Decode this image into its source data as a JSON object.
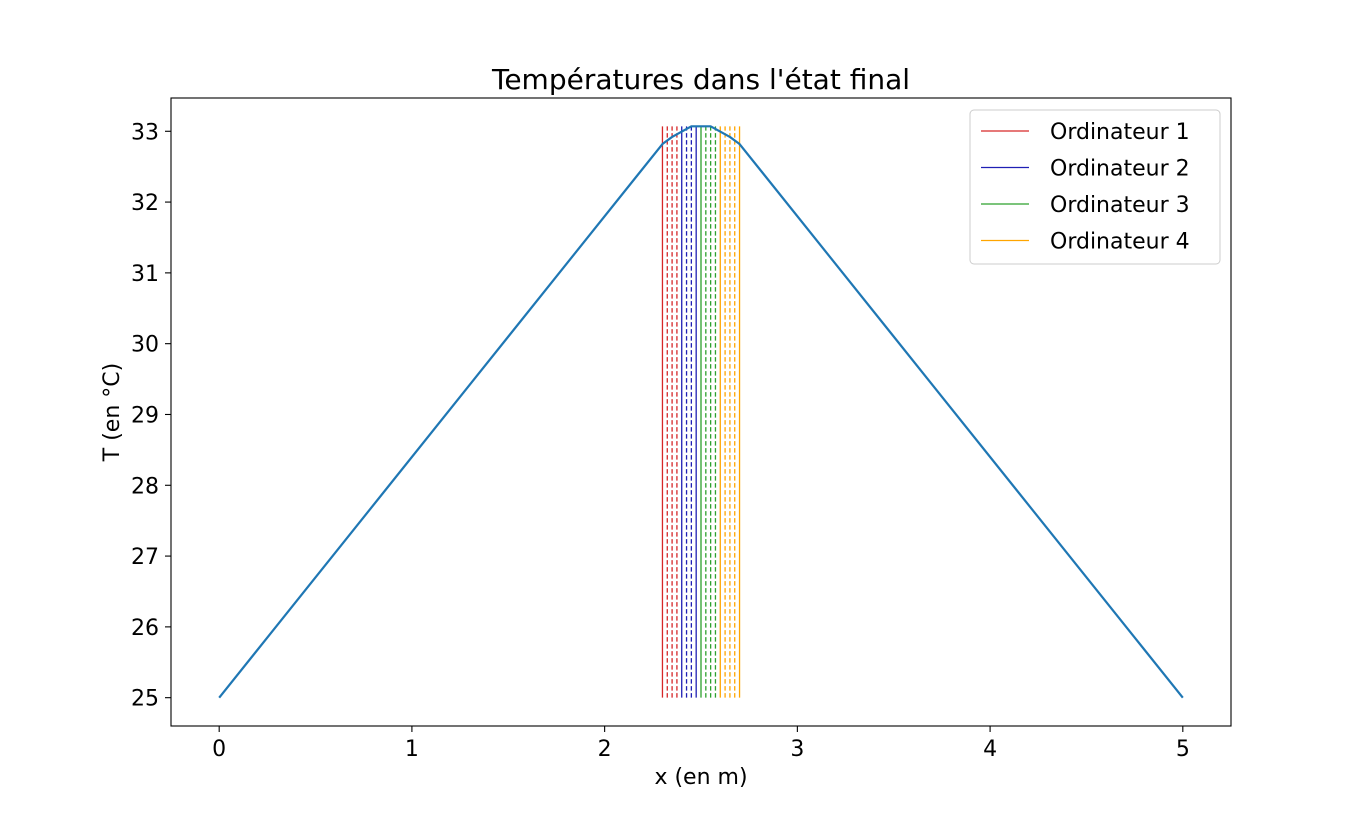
{
  "chart_data": {
    "type": "line",
    "title": "Températures dans l'état final",
    "xlabel": "x (en m)",
    "ylabel": "T (en °C)",
    "xlim": [
      -0.25,
      5.25
    ],
    "ylim": [
      24.6,
      33.47
    ],
    "xticks": [
      0,
      1,
      2,
      3,
      4,
      5
    ],
    "yticks": [
      25,
      26,
      27,
      28,
      29,
      30,
      31,
      32,
      33
    ],
    "grid": false,
    "legend_position": "top-right",
    "series": [
      {
        "color": "#1f77b4",
        "x": [
          0,
          2.3,
          2.35,
          2.45,
          2.55,
          2.65,
          2.7,
          5
        ],
        "y": [
          25,
          32.82,
          32.92,
          33.07,
          33.07,
          32.92,
          32.82,
          25
        ]
      }
    ],
    "legend": [
      {
        "name": "Ordinateur 1",
        "color": "#d62728"
      },
      {
        "name": "Ordinateur 2",
        "color": "#1f1fb4"
      },
      {
        "name": "Ordinateur 3",
        "color": "#2ca02c"
      },
      {
        "name": "Ordinateur 4",
        "color": "#ffa500"
      }
    ],
    "vlines": [
      {
        "group": 0,
        "x": 2.3,
        "style": "solid",
        "color": "#d62728"
      },
      {
        "group": 0,
        "x": 2.325,
        "style": "dashed",
        "color": "#d62728"
      },
      {
        "group": 0,
        "x": 2.35,
        "style": "dashed",
        "color": "#d62728"
      },
      {
        "group": 0,
        "x": 2.375,
        "style": "dashed",
        "color": "#d62728"
      },
      {
        "group": 1,
        "x": 2.4,
        "style": "solid",
        "color": "#1f1fb4"
      },
      {
        "group": 1,
        "x": 2.425,
        "style": "dashed",
        "color": "#1f1fb4"
      },
      {
        "group": 1,
        "x": 2.45,
        "style": "dashed",
        "color": "#1f1fb4"
      },
      {
        "group": 1,
        "x": 2.475,
        "style": "solid",
        "color": "#1f1fb4"
      },
      {
        "group": 2,
        "x": 2.5,
        "style": "solid",
        "color": "#2ca02c"
      },
      {
        "group": 2,
        "x": 2.525,
        "style": "dashed",
        "color": "#2ca02c"
      },
      {
        "group": 2,
        "x": 2.55,
        "style": "dashed",
        "color": "#2ca02c"
      },
      {
        "group": 2,
        "x": 2.575,
        "style": "dashed",
        "color": "#2ca02c"
      },
      {
        "group": 3,
        "x": 2.6,
        "style": "solid",
        "color": "#ffa500"
      },
      {
        "group": 3,
        "x": 2.625,
        "style": "dashed",
        "color": "#ffa500"
      },
      {
        "group": 3,
        "x": 2.65,
        "style": "dashed",
        "color": "#ffa500"
      },
      {
        "group": 3,
        "x": 2.675,
        "style": "dashed",
        "color": "#ffa500"
      },
      {
        "group": 3,
        "x": 2.7,
        "style": "solid",
        "color": "#ffa500"
      }
    ],
    "vline_ymin": 25,
    "vline_ymax": 33.07
  }
}
